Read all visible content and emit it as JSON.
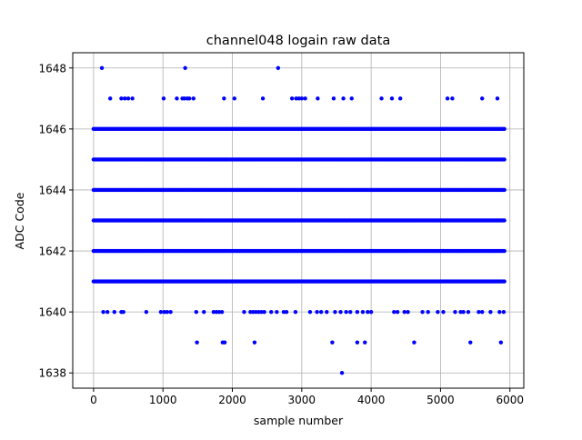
{
  "chart_data": {
    "type": "scatter",
    "title": "channel048 logain raw data",
    "xlabel": "sample number",
    "ylabel": "ADC Code",
    "xlim": [
      -300,
      6200
    ],
    "ylim": [
      1637.5,
      1648.5
    ],
    "xticks": [
      0,
      1000,
      2000,
      3000,
      4000,
      5000,
      6000
    ],
    "yticks": [
      1638,
      1640,
      1642,
      1644,
      1646,
      1648
    ],
    "grid": true,
    "legend": "none",
    "marker_color": "#0000ff",
    "sample_count": 5940,
    "dense_levels": [
      1641,
      1642,
      1643,
      1644,
      1645,
      1646
    ],
    "sparse_points": [
      {
        "x": 120,
        "y": 1648
      },
      {
        "x": 1320,
        "y": 1648
      },
      {
        "x": 2660,
        "y": 1648
      },
      {
        "x": 240,
        "y": 1647
      },
      {
        "x": 400,
        "y": 1647
      },
      {
        "x": 450,
        "y": 1647
      },
      {
        "x": 500,
        "y": 1647
      },
      {
        "x": 560,
        "y": 1647
      },
      {
        "x": 1010,
        "y": 1647
      },
      {
        "x": 1200,
        "y": 1647
      },
      {
        "x": 1280,
        "y": 1647
      },
      {
        "x": 1310,
        "y": 1647
      },
      {
        "x": 1350,
        "y": 1647
      },
      {
        "x": 1380,
        "y": 1647
      },
      {
        "x": 1440,
        "y": 1647
      },
      {
        "x": 1880,
        "y": 1647
      },
      {
        "x": 2030,
        "y": 1647
      },
      {
        "x": 2440,
        "y": 1647
      },
      {
        "x": 2860,
        "y": 1647
      },
      {
        "x": 2920,
        "y": 1647
      },
      {
        "x": 2960,
        "y": 1647
      },
      {
        "x": 3000,
        "y": 1647
      },
      {
        "x": 3050,
        "y": 1647
      },
      {
        "x": 3230,
        "y": 1647
      },
      {
        "x": 3460,
        "y": 1647
      },
      {
        "x": 3600,
        "y": 1647
      },
      {
        "x": 3720,
        "y": 1647
      },
      {
        "x": 4150,
        "y": 1647
      },
      {
        "x": 4300,
        "y": 1647
      },
      {
        "x": 4420,
        "y": 1647
      },
      {
        "x": 5100,
        "y": 1647
      },
      {
        "x": 5170,
        "y": 1647
      },
      {
        "x": 5600,
        "y": 1647
      },
      {
        "x": 5820,
        "y": 1647
      },
      {
        "x": 140,
        "y": 1640
      },
      {
        "x": 200,
        "y": 1640
      },
      {
        "x": 300,
        "y": 1640
      },
      {
        "x": 400,
        "y": 1640
      },
      {
        "x": 430,
        "y": 1640
      },
      {
        "x": 760,
        "y": 1640
      },
      {
        "x": 970,
        "y": 1640
      },
      {
        "x": 1020,
        "y": 1640
      },
      {
        "x": 1060,
        "y": 1640
      },
      {
        "x": 1110,
        "y": 1640
      },
      {
        "x": 1480,
        "y": 1640
      },
      {
        "x": 1590,
        "y": 1640
      },
      {
        "x": 1730,
        "y": 1640
      },
      {
        "x": 1770,
        "y": 1640
      },
      {
        "x": 1810,
        "y": 1640
      },
      {
        "x": 1850,
        "y": 1640
      },
      {
        "x": 2170,
        "y": 1640
      },
      {
        "x": 2260,
        "y": 1640
      },
      {
        "x": 2300,
        "y": 1640
      },
      {
        "x": 2340,
        "y": 1640
      },
      {
        "x": 2380,
        "y": 1640
      },
      {
        "x": 2420,
        "y": 1640
      },
      {
        "x": 2460,
        "y": 1640
      },
      {
        "x": 2560,
        "y": 1640
      },
      {
        "x": 2640,
        "y": 1640
      },
      {
        "x": 2740,
        "y": 1640
      },
      {
        "x": 2780,
        "y": 1640
      },
      {
        "x": 2910,
        "y": 1640
      },
      {
        "x": 3120,
        "y": 1640
      },
      {
        "x": 3220,
        "y": 1640
      },
      {
        "x": 3280,
        "y": 1640
      },
      {
        "x": 3360,
        "y": 1640
      },
      {
        "x": 3480,
        "y": 1640
      },
      {
        "x": 3560,
        "y": 1640
      },
      {
        "x": 3640,
        "y": 1640
      },
      {
        "x": 3700,
        "y": 1640
      },
      {
        "x": 3800,
        "y": 1640
      },
      {
        "x": 3880,
        "y": 1640
      },
      {
        "x": 3950,
        "y": 1640
      },
      {
        "x": 4000,
        "y": 1640
      },
      {
        "x": 4330,
        "y": 1640
      },
      {
        "x": 4380,
        "y": 1640
      },
      {
        "x": 4480,
        "y": 1640
      },
      {
        "x": 4530,
        "y": 1640
      },
      {
        "x": 4740,
        "y": 1640
      },
      {
        "x": 4820,
        "y": 1640
      },
      {
        "x": 4960,
        "y": 1640
      },
      {
        "x": 5040,
        "y": 1640
      },
      {
        "x": 5210,
        "y": 1640
      },
      {
        "x": 5290,
        "y": 1640
      },
      {
        "x": 5330,
        "y": 1640
      },
      {
        "x": 5400,
        "y": 1640
      },
      {
        "x": 5550,
        "y": 1640
      },
      {
        "x": 5600,
        "y": 1640
      },
      {
        "x": 5720,
        "y": 1640
      },
      {
        "x": 5850,
        "y": 1640
      },
      {
        "x": 5910,
        "y": 1640
      },
      {
        "x": 1490,
        "y": 1639
      },
      {
        "x": 1860,
        "y": 1639
      },
      {
        "x": 1890,
        "y": 1639
      },
      {
        "x": 2320,
        "y": 1639
      },
      {
        "x": 3440,
        "y": 1639
      },
      {
        "x": 3800,
        "y": 1639
      },
      {
        "x": 3910,
        "y": 1639
      },
      {
        "x": 4620,
        "y": 1639
      },
      {
        "x": 5430,
        "y": 1639
      },
      {
        "x": 5870,
        "y": 1639
      },
      {
        "x": 3580,
        "y": 1638
      }
    ]
  }
}
